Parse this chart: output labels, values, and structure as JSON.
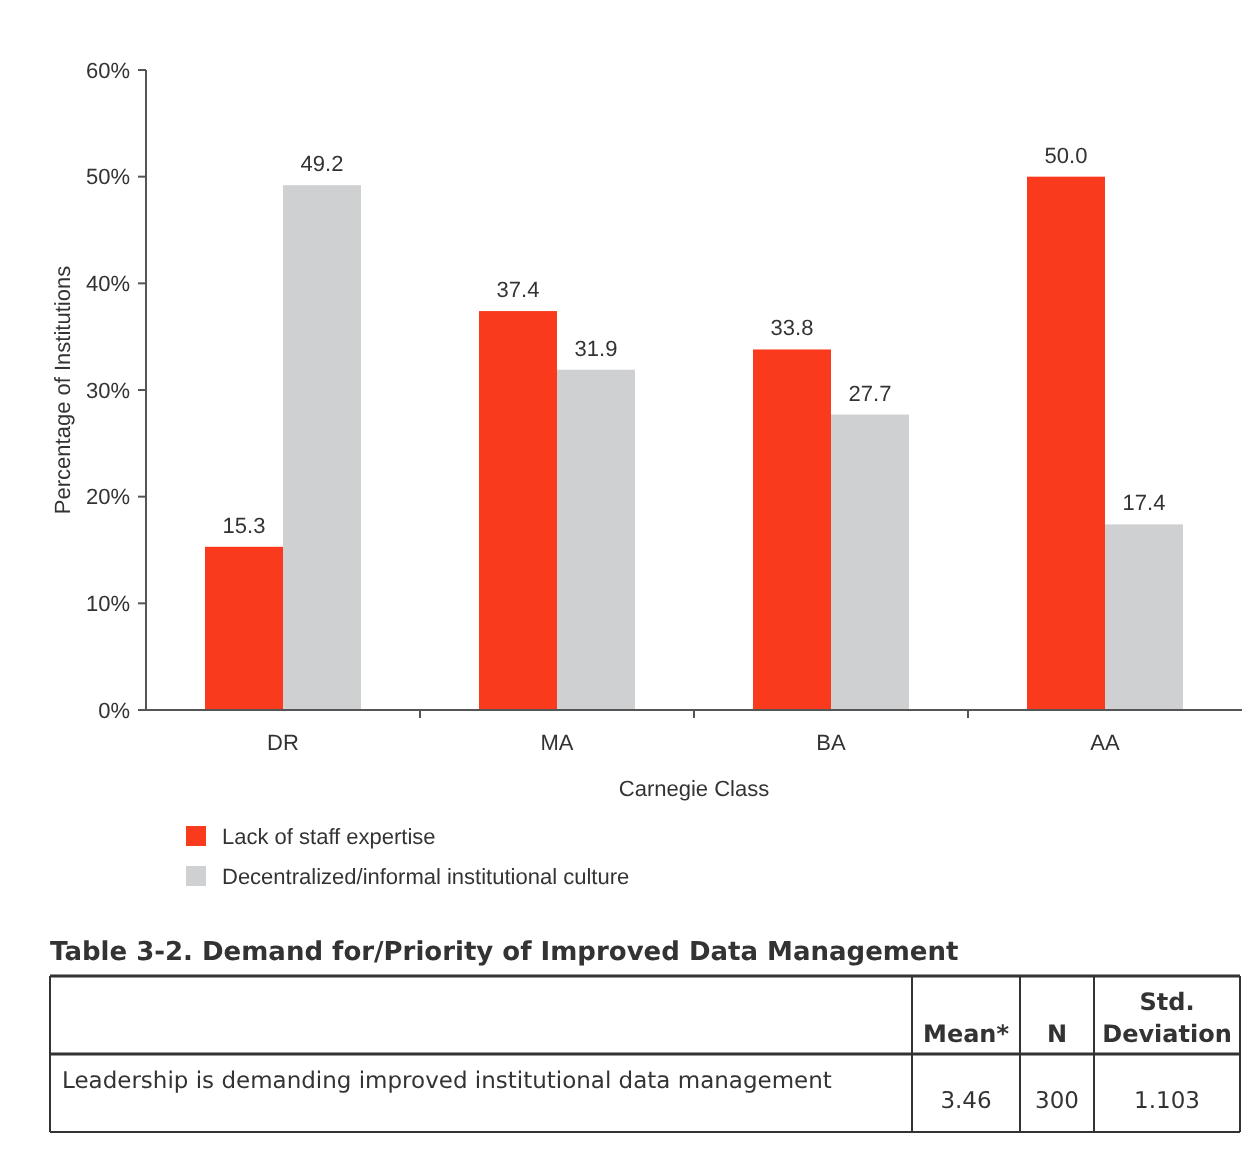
{
  "chart_data": [
    {
      "type": "bar",
      "categories": [
        "DR",
        "MA",
        "BA",
        "AA"
      ],
      "series": [
        {
          "name": "Lack of staff expertise",
          "color": "#f93a1d",
          "values": [
            15.3,
            37.4,
            33.8,
            50.0
          ],
          "value_labels": [
            "15.3",
            "37.4",
            "33.8",
            "50.0"
          ]
        },
        {
          "name": "Decentralized/informal institutional culture",
          "color": "#cfd0d2",
          "values": [
            49.2,
            31.9,
            27.7,
            17.4
          ],
          "value_labels": [
            "49.2",
            "31.9",
            "27.7",
            "17.4"
          ]
        }
      ],
      "ylim": [
        0,
        60
      ],
      "yticks": [
        {
          "value": 0,
          "label": "0%"
        },
        {
          "value": 10,
          "label": "10%"
        },
        {
          "value": 20,
          "label": "20%"
        },
        {
          "value": 30,
          "label": "30%"
        },
        {
          "value": 40,
          "label": "40%"
        },
        {
          "value": 50,
          "label": "50%"
        },
        {
          "value": 60,
          "label": "60%"
        }
      ],
      "xlabel": "Carnegie Class",
      "ylabel": "Percentage of Institutions",
      "grid": false,
      "legend": "bottom"
    },
    {
      "type": "other",
      "title": "Table 3-2. Demand for/Priority of Improved Data Management",
      "annotations": [
        "Mean*",
        "N",
        "Std. Deviation",
        "Leadership is demanding improved institutional data management",
        "3.46",
        "300",
        "1.103"
      ]
    }
  ]
}
